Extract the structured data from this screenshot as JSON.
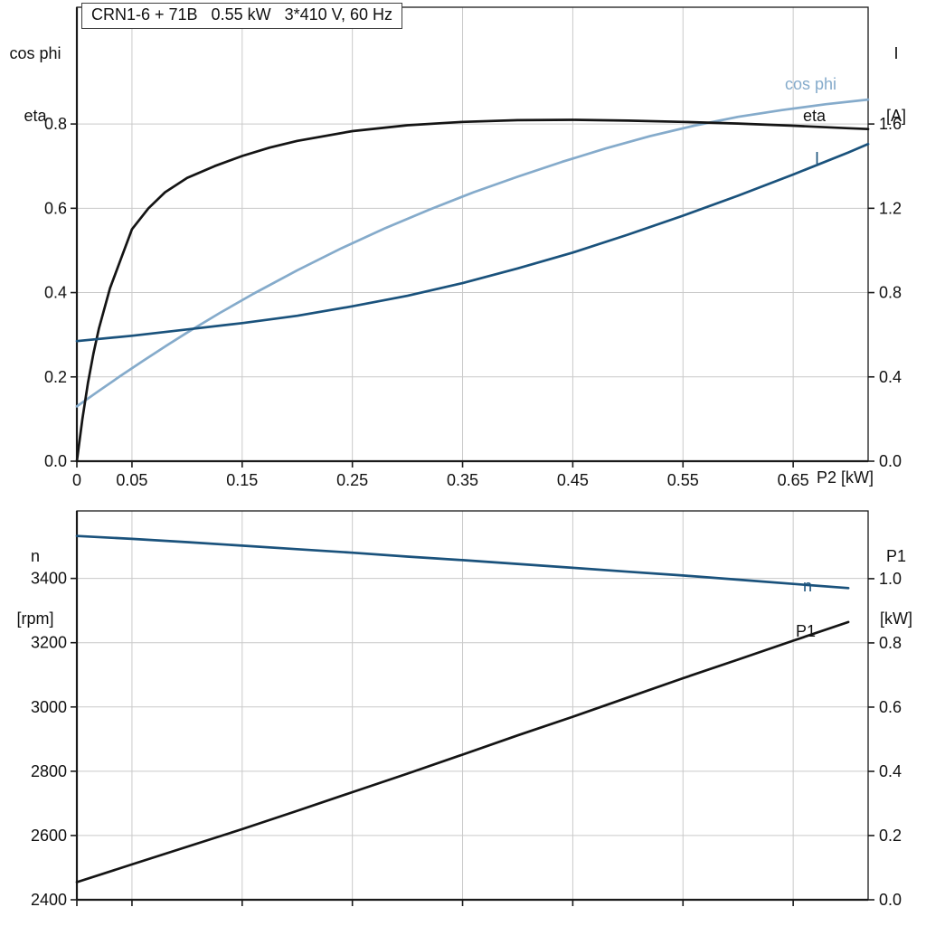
{
  "page": {
    "title_box": "CRN1-6 + 71B   0.55 kW   3*410 V, 60 Hz"
  },
  "colors": {
    "light_blue": "#85ABCB",
    "dark_blue": "#1A527C",
    "black": "#141414",
    "grid": "#C9C9C9",
    "axis": "#1A1A1A"
  },
  "chart_data": [
    {
      "type": "line",
      "name": "electrical-curves",
      "grid": true,
      "legend_position": "inline-right",
      "x_axis": {
        "label": "P2 [kW]",
        "min": 0,
        "max": 0.718,
        "ticks": [
          {
            "v": 0,
            "label": "0"
          },
          {
            "v": 0.05,
            "label": "0.05"
          },
          {
            "v": 0.15,
            "label": "0.15"
          },
          {
            "v": 0.25,
            "label": "0.25"
          },
          {
            "v": 0.35,
            "label": "0.35"
          },
          {
            "v": 0.45,
            "label": "0.45"
          },
          {
            "v": 0.55,
            "label": "0.55"
          },
          {
            "v": 0.65,
            "label": "0.65"
          }
        ]
      },
      "left_axis": {
        "title_lines": [
          "cos phi",
          "eta"
        ],
        "min": 0,
        "max": 1.077,
        "ticks": [
          {
            "v": 0,
            "label": "0.0"
          },
          {
            "v": 0.2,
            "label": "0.2"
          },
          {
            "v": 0.4,
            "label": "0.4"
          },
          {
            "v": 0.6,
            "label": "0.6"
          },
          {
            "v": 0.8,
            "label": "0.8"
          }
        ]
      },
      "right_axis": {
        "title_lines": [
          "I",
          "[A]"
        ],
        "min": 0,
        "max": 2.154,
        "ticks": [
          {
            "v": 0,
            "label": "0.0"
          },
          {
            "v": 0.4,
            "label": "0.4"
          },
          {
            "v": 0.8,
            "label": "0.8"
          },
          {
            "v": 1.2,
            "label": "1.2"
          },
          {
            "v": 1.6,
            "label": "1.6"
          }
        ]
      },
      "series": [
        {
          "name": "cos-phi",
          "label": "cos phi",
          "axis": "left",
          "color": "light_blue",
          "x": [
            0,
            0.02,
            0.04,
            0.06,
            0.08,
            0.1,
            0.13,
            0.16,
            0.2,
            0.24,
            0.28,
            0.32,
            0.36,
            0.4,
            0.44,
            0.48,
            0.52,
            0.56,
            0.6,
            0.64,
            0.68,
            0.718
          ],
          "y": [
            0.13,
            0.167,
            0.203,
            0.238,
            0.272,
            0.305,
            0.352,
            0.397,
            0.453,
            0.505,
            0.553,
            0.597,
            0.638,
            0.675,
            0.71,
            0.742,
            0.771,
            0.796,
            0.817,
            0.833,
            0.847,
            0.858
          ]
        },
        {
          "name": "eta",
          "label": "eta",
          "axis": "left",
          "color": "black",
          "x": [
            0,
            0.005,
            0.01,
            0.015,
            0.02,
            0.03,
            0.04,
            0.05,
            0.065,
            0.08,
            0.1,
            0.125,
            0.15,
            0.175,
            0.2,
            0.25,
            0.3,
            0.35,
            0.4,
            0.45,
            0.5,
            0.55,
            0.6,
            0.65,
            0.7,
            0.718
          ],
          "y": [
            0,
            0.1,
            0.185,
            0.255,
            0.315,
            0.41,
            0.48,
            0.55,
            0.6,
            0.638,
            0.672,
            0.7,
            0.724,
            0.744,
            0.76,
            0.783,
            0.797,
            0.805,
            0.809,
            0.81,
            0.808,
            0.805,
            0.801,
            0.796,
            0.79,
            0.788
          ]
        },
        {
          "name": "current",
          "label": "I",
          "axis": "right",
          "color": "dark_blue",
          "x": [
            0,
            0.05,
            0.1,
            0.15,
            0.2,
            0.25,
            0.3,
            0.35,
            0.4,
            0.45,
            0.5,
            0.55,
            0.6,
            0.65,
            0.7,
            0.718
          ],
          "y": [
            0.57,
            0.595,
            0.625,
            0.655,
            0.69,
            0.735,
            0.785,
            0.845,
            0.915,
            0.99,
            1.075,
            1.165,
            1.26,
            1.36,
            1.465,
            1.505
          ]
        }
      ]
    },
    {
      "type": "line",
      "name": "speed-power-curves",
      "grid": true,
      "legend_position": "inline-right",
      "x_axis": {
        "label": "",
        "min": 0,
        "max": 0.718,
        "ticks": [
          {
            "v": 0,
            "label": ""
          },
          {
            "v": 0.05,
            "label": ""
          },
          {
            "v": 0.15,
            "label": ""
          },
          {
            "v": 0.25,
            "label": ""
          },
          {
            "v": 0.35,
            "label": ""
          },
          {
            "v": 0.45,
            "label": ""
          },
          {
            "v": 0.55,
            "label": ""
          },
          {
            "v": 0.65,
            "label": ""
          }
        ]
      },
      "left_axis": {
        "title_lines": [
          "n",
          "[rpm]"
        ],
        "min": 2400,
        "max": 3610,
        "ticks": [
          {
            "v": 2400,
            "label": "2400"
          },
          {
            "v": 2600,
            "label": "2600"
          },
          {
            "v": 2800,
            "label": "2800"
          },
          {
            "v": 3000,
            "label": "3000"
          },
          {
            "v": 3200,
            "label": "3200"
          },
          {
            "v": 3400,
            "label": "3400"
          }
        ]
      },
      "right_axis": {
        "title_lines": [
          "P1",
          "[kW]"
        ],
        "min": 0,
        "max": 1.211,
        "ticks": [
          {
            "v": 0,
            "label": "0.0"
          },
          {
            "v": 0.2,
            "label": "0.2"
          },
          {
            "v": 0.4,
            "label": "0.4"
          },
          {
            "v": 0.6,
            "label": "0.6"
          },
          {
            "v": 0.8,
            "label": "0.8"
          },
          {
            "v": 1.0,
            "label": "1.0"
          }
        ]
      },
      "series": [
        {
          "name": "speed",
          "label": "n",
          "axis": "left",
          "color": "dark_blue",
          "x": [
            0,
            0.05,
            0.1,
            0.15,
            0.2,
            0.25,
            0.3,
            0.35,
            0.4,
            0.45,
            0.5,
            0.55,
            0.6,
            0.65,
            0.7
          ],
          "y": [
            3532,
            3523,
            3513,
            3502,
            3491,
            3480,
            3468,
            3457,
            3445,
            3433,
            3421,
            3409,
            3396,
            3383,
            3370
          ]
        },
        {
          "name": "input-power",
          "label": "P1",
          "axis": "right",
          "color": "black",
          "x": [
            0,
            0.05,
            0.1,
            0.15,
            0.2,
            0.25,
            0.3,
            0.35,
            0.4,
            0.45,
            0.5,
            0.55,
            0.6,
            0.65,
            0.7
          ],
          "y": [
            0.055,
            0.11,
            0.165,
            0.22,
            0.277,
            0.335,
            0.393,
            0.452,
            0.512,
            0.57,
            0.63,
            0.69,
            0.748,
            0.807,
            0.865
          ]
        }
      ]
    }
  ]
}
